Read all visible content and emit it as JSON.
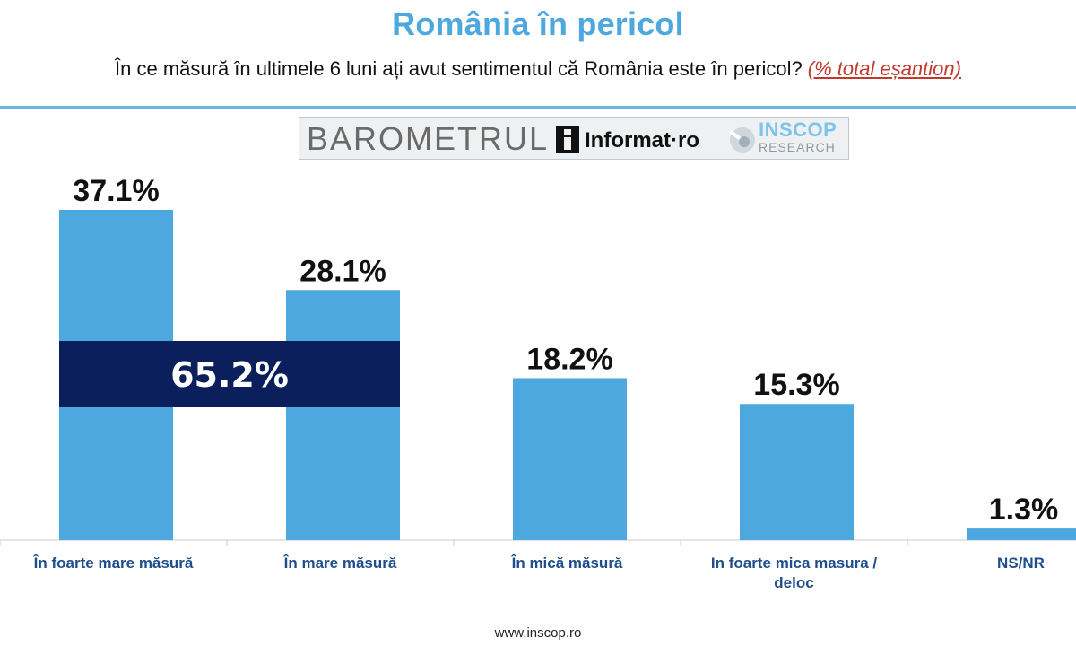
{
  "header": {
    "title": "România în pericol",
    "subtitle": "În ce măsură în ultimele 6 luni ați avut sentimentul că România este în pericol?",
    "subtitle_note": "(% total eșantion)"
  },
  "branding": {
    "barometru": "BAROMETRUL",
    "informat": "Informat·ro",
    "inscop": "INSCOP",
    "research": "RESEARCH"
  },
  "footer": {
    "url": "www.inscop.ro"
  },
  "colors": {
    "bar": "#4ea8e0",
    "highlight": "#0b1f5c",
    "title": "#4ea8e0",
    "note": "#c0392b"
  },
  "chart_data": {
    "type": "bar",
    "categories": [
      "În foarte mare măsură",
      "În mare măsură",
      "În mică măsură",
      "In foarte mica masura / deloc",
      "NS/NR"
    ],
    "category_lines": [
      [
        "În foarte mare măsură"
      ],
      [
        "În mare măsură"
      ],
      [
        "În mică măsură"
      ],
      [
        "In foarte mica masura /",
        "deloc"
      ],
      [
        "NS/NR"
      ]
    ],
    "values": [
      37.1,
      28.1,
      18.2,
      15.3,
      1.3
    ],
    "value_labels": [
      "37.1%",
      "28.1%",
      "18.2%",
      "15.3%",
      "1.3%"
    ],
    "unit": "%",
    "ylim": [
      0,
      37.1
    ],
    "combined": {
      "label": "65.2%",
      "value": 65.2,
      "categories": [
        0,
        1
      ]
    },
    "title": "România în pericol",
    "xlabel": "",
    "ylabel": ""
  }
}
